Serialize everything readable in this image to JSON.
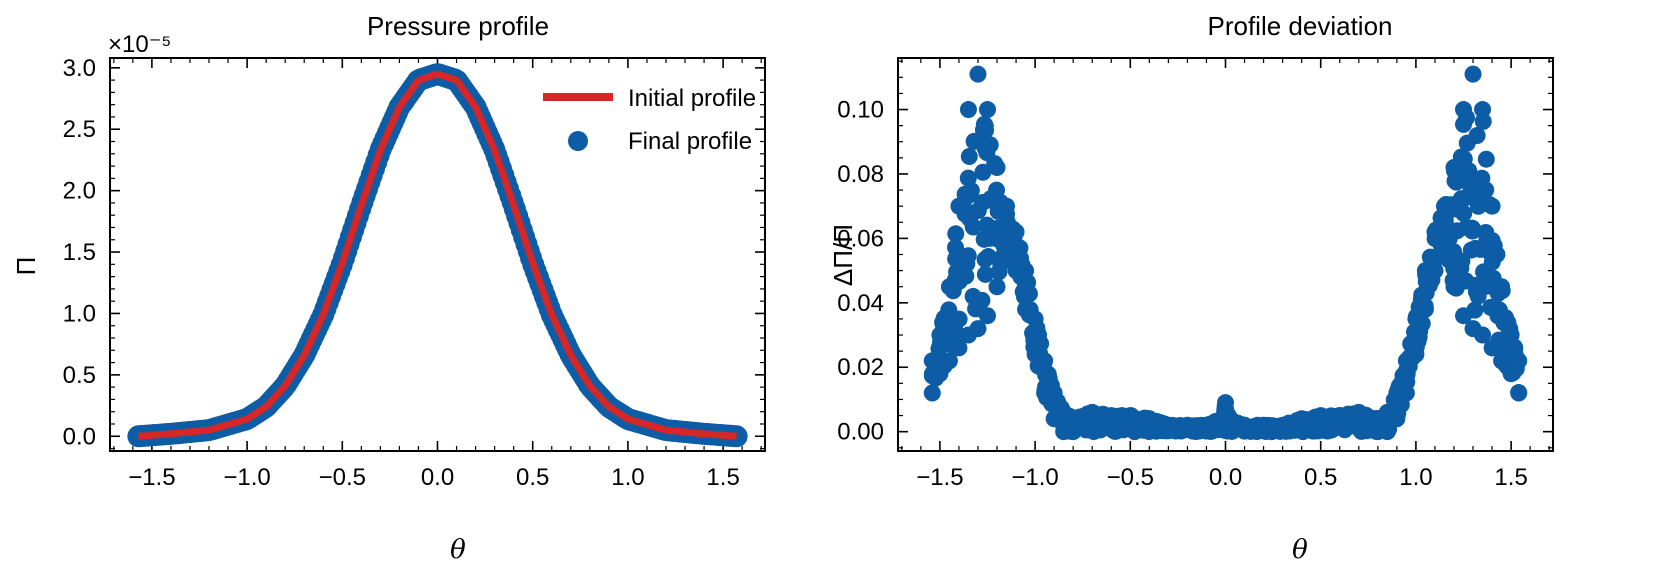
{
  "colors": {
    "initial": "#d62728",
    "final": "#0c5da5",
    "axis": "#000000"
  },
  "chart_data": [
    {
      "type": "line+scatter",
      "title": "Pressure profile",
      "xlabel": "θ",
      "ylabel": "Π",
      "offset_label": "×10⁻⁵",
      "xlim": [
        -1.72,
        1.72
      ],
      "ylim": [
        -0.12,
        3.08
      ],
      "x_ticks": [
        -1.5,
        -1.0,
        -0.5,
        0.0,
        0.5,
        1.0,
        1.5
      ],
      "x_tick_labels": [
        "−1.5",
        "−1.0",
        "−0.5",
        "0.0",
        "0.5",
        "1.0",
        "1.5"
      ],
      "y_ticks": [
        0.0,
        0.5,
        1.0,
        1.5,
        2.0,
        2.5,
        3.0
      ],
      "y_tick_labels": [
        "0.0",
        "0.5",
        "1.0",
        "1.5",
        "2.0",
        "2.5",
        "3.0"
      ],
      "legend": {
        "position": "top-right",
        "entries": [
          "Initial profile",
          "Final profile"
        ]
      },
      "series": [
        {
          "name": "Initial profile",
          "kind": "line",
          "x": [
            -1.571,
            -1.4,
            -1.2,
            -1.0,
            -0.9,
            -0.8,
            -0.7,
            -0.6,
            -0.5,
            -0.4,
            -0.3,
            -0.2,
            -0.1,
            0.0,
            0.1,
            0.2,
            0.3,
            0.4,
            0.5,
            0.6,
            0.7,
            0.8,
            0.9,
            1.0,
            1.2,
            1.4,
            1.571
          ],
          "y": [
            0.0,
            0.02,
            0.05,
            0.14,
            0.24,
            0.41,
            0.66,
            0.99,
            1.41,
            1.88,
            2.33,
            2.68,
            2.9,
            2.95,
            2.9,
            2.68,
            2.33,
            1.88,
            1.41,
            0.99,
            0.66,
            0.41,
            0.24,
            0.14,
            0.05,
            0.02,
            0.0
          ]
        },
        {
          "name": "Final profile",
          "kind": "scatter",
          "x": [
            -1.571,
            -1.4,
            -1.2,
            -1.0,
            -0.9,
            -0.8,
            -0.7,
            -0.6,
            -0.5,
            -0.4,
            -0.3,
            -0.2,
            -0.1,
            0.0,
            0.1,
            0.2,
            0.3,
            0.4,
            0.5,
            0.6,
            0.7,
            0.8,
            0.9,
            1.0,
            1.2,
            1.4,
            1.571
          ],
          "y": [
            0.0,
            0.02,
            0.05,
            0.14,
            0.24,
            0.41,
            0.66,
            0.99,
            1.41,
            1.88,
            2.33,
            2.68,
            2.9,
            2.95,
            2.9,
            2.68,
            2.33,
            1.88,
            1.41,
            0.99,
            0.66,
            0.41,
            0.24,
            0.14,
            0.05,
            0.02,
            0.0
          ]
        }
      ]
    },
    {
      "type": "scatter",
      "title": "Profile deviation",
      "xlabel": "θ",
      "ylabel": "ΔΠ/Π",
      "xlim": [
        -1.72,
        1.72
      ],
      "ylim": [
        -0.006,
        0.116
      ],
      "x_ticks": [
        -1.5,
        -1.0,
        -0.5,
        0.0,
        0.5,
        1.0,
        1.5
      ],
      "x_tick_labels": [
        "−1.5",
        "−1.0",
        "−0.5",
        "0.0",
        "0.5",
        "1.0",
        "1.5"
      ],
      "y_ticks": [
        0.0,
        0.02,
        0.04,
        0.06,
        0.08,
        0.1
      ],
      "y_tick_labels": [
        "0.00",
        "0.02",
        "0.04",
        "0.06",
        "0.08",
        "0.10"
      ],
      "series": [
        {
          "name": "Deviation",
          "upper_envelope": {
            "x": [
              -1.54,
              -1.5,
              -1.45,
              -1.4,
              -1.35,
              -1.3,
              -1.25,
              -1.2,
              -1.15,
              -1.1,
              -1.05,
              -1.0,
              -0.95,
              -0.9,
              -0.85,
              -0.8,
              -0.7,
              -0.6,
              -0.5,
              -0.4,
              -0.3,
              -0.2,
              -0.1,
              -0.02,
              0.0,
              0.02,
              0.1,
              0.2,
              0.3,
              0.4,
              0.5,
              0.6,
              0.7,
              0.8,
              0.85,
              0.9,
              0.95,
              1.0,
              1.05,
              1.1,
              1.15,
              1.2,
              1.25,
              1.3,
              1.35,
              1.4,
              1.45,
              1.5,
              1.54
            ],
            "y": [
              0.022,
              0.03,
              0.045,
              0.07,
              0.1,
              0.111,
              0.1,
              0.082,
              0.07,
              0.062,
              0.05,
              0.035,
              0.022,
              0.012,
              0.006,
              0.004,
              0.006,
              0.005,
              0.005,
              0.004,
              0.002,
              0.002,
              0.002,
              0.004,
              0.009,
              0.004,
              0.002,
              0.002,
              0.002,
              0.004,
              0.005,
              0.005,
              0.006,
              0.004,
              0.006,
              0.012,
              0.022,
              0.035,
              0.05,
              0.062,
              0.07,
              0.082,
              0.1,
              0.111,
              0.1,
              0.07,
              0.045,
              0.03,
              0.022
            ]
          },
          "lower_envelope": {
            "x": [
              -1.54,
              -1.5,
              -1.45,
              -1.4,
              -1.35,
              -1.3,
              -1.25,
              -1.2,
              -1.15,
              -1.1,
              -1.05,
              -1.0,
              -0.95,
              -0.9,
              -0.85,
              -0.8,
              0.8,
              0.85,
              0.9,
              0.95,
              1.0,
              1.05,
              1.1,
              1.15,
              1.2,
              1.25,
              1.3,
              1.35,
              1.4,
              1.45,
              1.5,
              1.54
            ],
            "y": [
              0.012,
              0.018,
              0.022,
              0.026,
              0.03,
              0.032,
              0.036,
              0.045,
              0.055,
              0.05,
              0.038,
              0.024,
              0.012,
              0.004,
              0.0,
              0.0,
              0.0,
              0.0,
              0.004,
              0.012,
              0.024,
              0.038,
              0.05,
              0.055,
              0.045,
              0.036,
              0.032,
              0.03,
              0.026,
              0.022,
              0.018,
              0.012
            ]
          }
        }
      ]
    }
  ]
}
